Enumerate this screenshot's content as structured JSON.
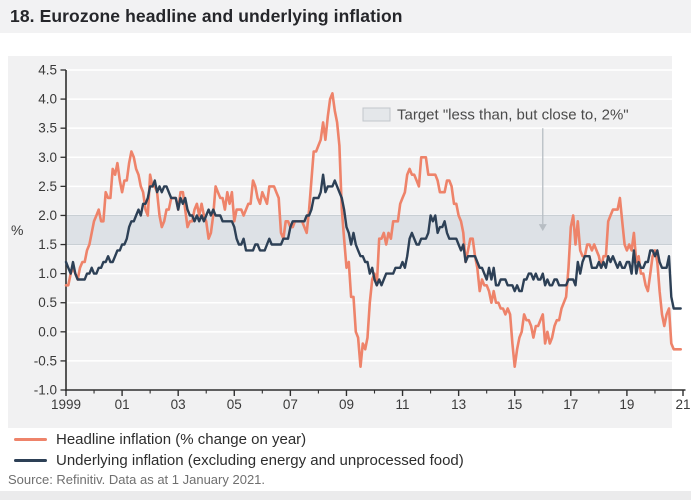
{
  "header": {
    "title": "18. Eurozone headline and underlying inflation"
  },
  "source": {
    "text": "Source: Refinitiv. Data as at 1 January 2021."
  },
  "colors": {
    "accent_headline": "#ee836a",
    "accent_underlying": "#2d4056",
    "panel": "#f1f1f2",
    "gridline": "#ffffff",
    "band_fill": "#dde1e6",
    "band_edge": "#c9cfd4",
    "axis": "#2f2f2f",
    "tick_label": "#3a3a3a",
    "annotation_text": "#4a4a4a",
    "annotation_box": "#e4e7ea",
    "annotation_box_border": "#c2c7cc",
    "arrow": "#b7bdc3"
  },
  "legend": {
    "items": [
      {
        "label": "Headline inflation (% change on year)",
        "color": "#ee836a"
      },
      {
        "label": "Underlying inflation (excluding energy and unprocessed food)",
        "color": "#2d4056"
      }
    ]
  },
  "chart_data": {
    "type": "line",
    "ylabel": "%",
    "ylim": [
      -1.0,
      4.5
    ],
    "ytick_step": 0.5,
    "xlim": [
      1999,
      2021
    ],
    "xtick_years": [
      1999,
      2001,
      2003,
      2005,
      2007,
      2009,
      2011,
      2013,
      2015,
      2017,
      2019,
      2021
    ],
    "xtick_labels": [
      "1999",
      "01",
      "03",
      "05",
      "07",
      "09",
      "11",
      "13",
      "15",
      "17",
      "19",
      "21"
    ],
    "xtick_minor_years": [
      2000,
      2002,
      2004,
      2006,
      2008,
      2010,
      2012,
      2014,
      2016,
      2018,
      2020
    ],
    "x_start_year": 1999,
    "points_per_year": 12,
    "grid": true,
    "target_band": {
      "from": 1.5,
      "to": 2.0
    },
    "annotation": {
      "text": "Target \"less than, but close to, 2%\"",
      "arrow_x_year": 2016.0,
      "arrow_from_value": 3.5,
      "arrow_to_value": 1.85
    },
    "series": [
      {
        "name": "Headline inflation (% change on year)",
        "color": "#ee836a",
        "values": [
          0.8,
          0.8,
          1.0,
          1.1,
          1.0,
          0.9,
          1.1,
          1.2,
          1.2,
          1.4,
          1.5,
          1.7,
          1.9,
          2.0,
          2.1,
          1.9,
          1.9,
          2.4,
          2.3,
          2.3,
          2.8,
          2.7,
          2.9,
          2.6,
          2.4,
          2.6,
          2.6,
          2.9,
          3.1,
          3.0,
          2.8,
          2.7,
          2.5,
          2.4,
          2.1,
          2.0,
          2.7,
          2.5,
          2.5,
          2.4,
          2.0,
          1.8,
          1.9,
          2.1,
          2.1,
          2.3,
          2.3,
          2.3,
          2.1,
          2.4,
          2.4,
          2.1,
          1.8,
          1.9,
          1.9,
          2.1,
          2.2,
          2.0,
          2.2,
          2.0,
          1.9,
          1.6,
          1.7,
          2.0,
          2.5,
          2.4,
          2.3,
          2.3,
          2.1,
          2.4,
          2.2,
          2.4,
          1.9,
          2.1,
          2.1,
          2.1,
          2.0,
          2.1,
          2.2,
          2.2,
          2.6,
          2.5,
          2.3,
          2.2,
          2.4,
          2.3,
          2.2,
          2.5,
          2.5,
          2.5,
          2.4,
          2.3,
          1.7,
          1.6,
          1.9,
          1.9,
          1.8,
          1.8,
          1.9,
          1.9,
          1.9,
          1.9,
          1.8,
          1.7,
          2.1,
          2.6,
          3.1,
          3.1,
          3.2,
          3.3,
          3.6,
          3.3,
          3.7,
          4.0,
          4.1,
          3.8,
          3.6,
          3.2,
          2.1,
          1.6,
          1.1,
          1.2,
          0.6,
          0.6,
          0.0,
          -0.1,
          -0.6,
          -0.2,
          -0.3,
          -0.1,
          0.5,
          0.9,
          1.0,
          0.8,
          1.6,
          1.6,
          1.7,
          1.5,
          1.7,
          1.6,
          1.9,
          1.9,
          1.9,
          2.2,
          2.3,
          2.4,
          2.7,
          2.8,
          2.7,
          2.7,
          2.6,
          2.5,
          3.0,
          3.0,
          3.0,
          2.7,
          2.7,
          2.7,
          2.7,
          2.6,
          2.4,
          2.4,
          2.4,
          2.6,
          2.6,
          2.5,
          2.2,
          2.2,
          2.0,
          1.9,
          1.7,
          1.2,
          1.4,
          1.6,
          1.6,
          1.3,
          1.1,
          0.7,
          0.9,
          0.8,
          0.8,
          0.7,
          0.5,
          0.7,
          0.5,
          0.5,
          0.4,
          0.4,
          0.3,
          0.4,
          0.3,
          -0.2,
          -0.6,
          -0.3,
          -0.1,
          0.0,
          0.3,
          0.2,
          0.2,
          0.1,
          -0.1,
          0.1,
          0.1,
          0.2,
          0.3,
          -0.2,
          0.0,
          -0.2,
          -0.1,
          0.1,
          0.2,
          0.2,
          0.4,
          0.5,
          0.6,
          1.1,
          1.8,
          2.0,
          1.5,
          1.9,
          1.4,
          1.3,
          1.3,
          1.5,
          1.5,
          1.4,
          1.5,
          1.4,
          1.3,
          1.1,
          1.3,
          1.3,
          1.9,
          2.0,
          2.1,
          2.1,
          2.1,
          2.3,
          1.9,
          1.5,
          1.4,
          1.5,
          1.4,
          1.7,
          1.2,
          1.3,
          1.0,
          1.0,
          0.8,
          0.7,
          1.0,
          1.3,
          1.4,
          1.2,
          0.7,
          0.3,
          0.1,
          0.3,
          0.4,
          -0.2,
          -0.3,
          -0.3,
          -0.3,
          -0.3
        ]
      },
      {
        "name": "Underlying inflation (excluding energy and unprocessed food)",
        "color": "#2d4056",
        "values": [
          1.2,
          1.1,
          1.0,
          1.2,
          1.0,
          0.9,
          0.9,
          0.9,
          0.9,
          1.0,
          1.0,
          1.1,
          1.0,
          1.0,
          1.1,
          1.1,
          1.2,
          1.2,
          1.3,
          1.2,
          1.2,
          1.3,
          1.4,
          1.4,
          1.5,
          1.5,
          1.6,
          1.8,
          1.9,
          1.9,
          2.0,
          2.1,
          2.0,
          2.2,
          2.2,
          2.3,
          2.5,
          2.5,
          2.6,
          2.4,
          2.5,
          2.4,
          2.5,
          2.5,
          2.4,
          2.3,
          2.3,
          2.3,
          2.1,
          2.3,
          2.2,
          2.3,
          2.1,
          2.0,
          2.0,
          1.9,
          2.0,
          1.9,
          2.0,
          1.9,
          2.0,
          2.1,
          2.0,
          2.1,
          2.0,
          2.0,
          2.0,
          1.9,
          1.9,
          1.9,
          1.9,
          1.9,
          1.8,
          1.6,
          1.5,
          1.5,
          1.6,
          1.4,
          1.4,
          1.4,
          1.4,
          1.5,
          1.5,
          1.4,
          1.4,
          1.4,
          1.5,
          1.6,
          1.5,
          1.5,
          1.5,
          1.5,
          1.5,
          1.6,
          1.6,
          1.6,
          1.8,
          1.9,
          1.9,
          1.9,
          1.9,
          1.9,
          1.9,
          2.0,
          2.0,
          2.1,
          2.3,
          2.3,
          2.3,
          2.4,
          2.7,
          2.4,
          2.5,
          2.5,
          2.5,
          2.6,
          2.5,
          2.4,
          2.3,
          2.1,
          1.8,
          1.7,
          1.5,
          1.7,
          1.5,
          1.4,
          1.3,
          1.3,
          1.2,
          1.2,
          1.0,
          1.1,
          0.9,
          0.8,
          0.9,
          0.8,
          0.9,
          1.0,
          1.0,
          1.0,
          1.0,
          1.1,
          1.1,
          1.1,
          1.2,
          1.1,
          1.3,
          1.6,
          1.7,
          1.6,
          1.5,
          1.5,
          1.6,
          1.6,
          1.6,
          1.7,
          2.0,
          1.9,
          2.0,
          1.7,
          1.8,
          1.8,
          1.9,
          1.7,
          1.6,
          1.6,
          1.6,
          1.6,
          1.5,
          1.4,
          1.5,
          1.2,
          1.3,
          1.3,
          1.3,
          1.3,
          1.2,
          1.1,
          1.1,
          1.0,
          0.9,
          1.1,
          0.9,
          1.1,
          0.8,
          0.8,
          0.9,
          0.9,
          0.9,
          0.8,
          0.8,
          0.8,
          0.7,
          0.8,
          0.7,
          0.7,
          0.9,
          0.9,
          1.0,
          1.0,
          0.9,
          1.0,
          0.9,
          0.9,
          1.0,
          0.8,
          0.9,
          0.8,
          0.8,
          0.9,
          0.9,
          0.8,
          0.8,
          0.8,
          0.8,
          0.9,
          0.9,
          0.9,
          0.8,
          1.2,
          1.0,
          1.2,
          1.3,
          1.3,
          1.3,
          1.1,
          1.1,
          1.1,
          1.2,
          1.1,
          1.2,
          1.1,
          1.3,
          1.2,
          1.3,
          1.2,
          1.1,
          1.2,
          1.1,
          1.1,
          1.2,
          1.2,
          1.0,
          1.4,
          1.0,
          1.2,
          1.1,
          1.1,
          1.2,
          1.2,
          1.4,
          1.4,
          1.3,
          1.4,
          1.2,
          1.1,
          1.1,
          1.1,
          1.3,
          0.6,
          0.4,
          0.4,
          0.4,
          0.4
        ]
      }
    ]
  }
}
